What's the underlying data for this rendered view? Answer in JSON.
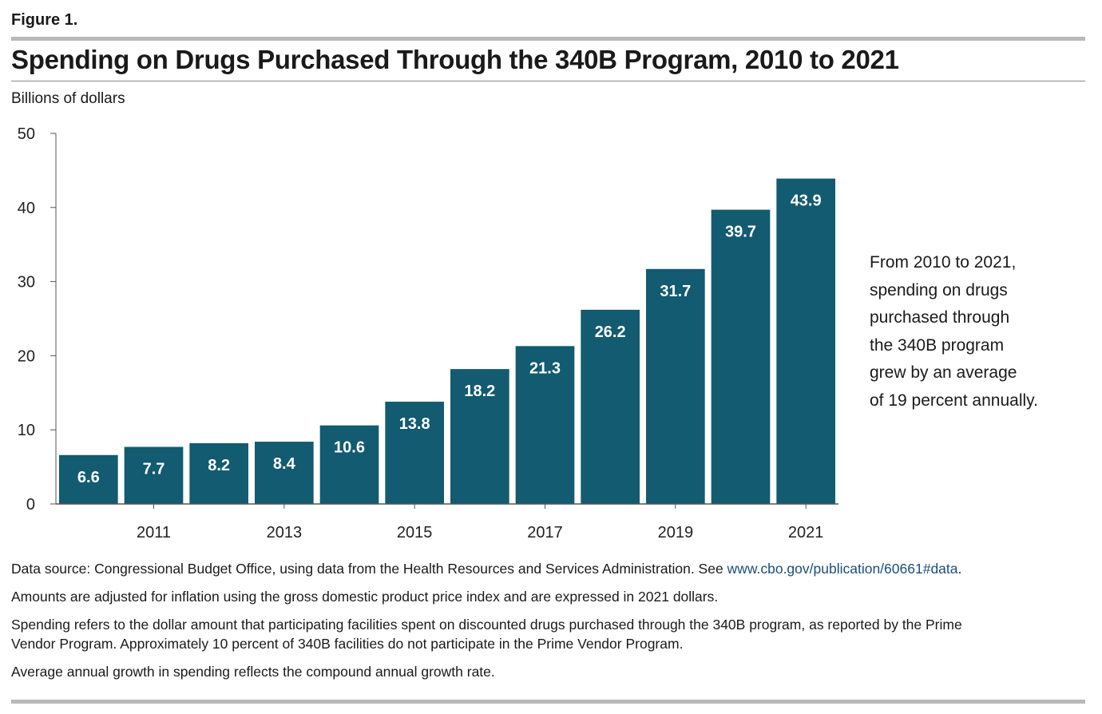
{
  "figure_label": "Figure 1.",
  "colors": {
    "bar": "#125b71",
    "bar_label": "#ffffff",
    "axis": "#555555",
    "rule": "#b9b9b9",
    "link": "#1c4d7c"
  },
  "chart_data": {
    "type": "bar",
    "title": "Spending on Drugs Purchased Through the 340B Program, 2010 to 2021",
    "ylabel": "Billions of dollars",
    "xlabel": "",
    "categories": [
      "2010",
      "2011",
      "2012",
      "2013",
      "2014",
      "2015",
      "2016",
      "2017",
      "2018",
      "2019",
      "2020",
      "2021"
    ],
    "values": [
      6.6,
      7.7,
      8.2,
      8.4,
      10.6,
      13.8,
      18.2,
      21.3,
      26.2,
      31.7,
      39.7,
      43.9
    ],
    "data_labels": [
      "6.6",
      "7.7",
      "8.2",
      "8.4",
      "10.6",
      "13.8",
      "18.2",
      "21.3",
      "26.2",
      "31.7",
      "39.7",
      "43.9"
    ],
    "x_tick_labels": [
      "2011",
      "2013",
      "2015",
      "2017",
      "2019",
      "2021"
    ],
    "y_ticks": [
      0,
      10,
      20,
      30,
      40,
      50
    ],
    "ylim": [
      0,
      50
    ],
    "grid": false,
    "legend": "none"
  },
  "annotation": {
    "lines": [
      "From 2010 to 2021,",
      "spending on drugs",
      "purchased through",
      "the 340B program",
      "grew by an average",
      "of 19 percent annually."
    ]
  },
  "notes": {
    "source_prefix": "Data source: Congressional Budget Office, using data from the Health Resources and Services Administration. See ",
    "source_link": "www.cbo.gov/publication/60661#data",
    "source_suffix": ".",
    "note1": "Amounts are adjusted for inflation using the gross domestic product price index and are expressed in 2021 dollars.",
    "note2_line1": "Spending refers to the dollar amount that participating facilities spent on discounted drugs purchased through the 340B program, as reported by the Prime",
    "note2_line2": "Vendor Program. Approximately 10 percent of 340B facilities do not participate in the Prime Vendor Program.",
    "note3": "Average annual growth in spending reflects the compound annual growth rate."
  }
}
